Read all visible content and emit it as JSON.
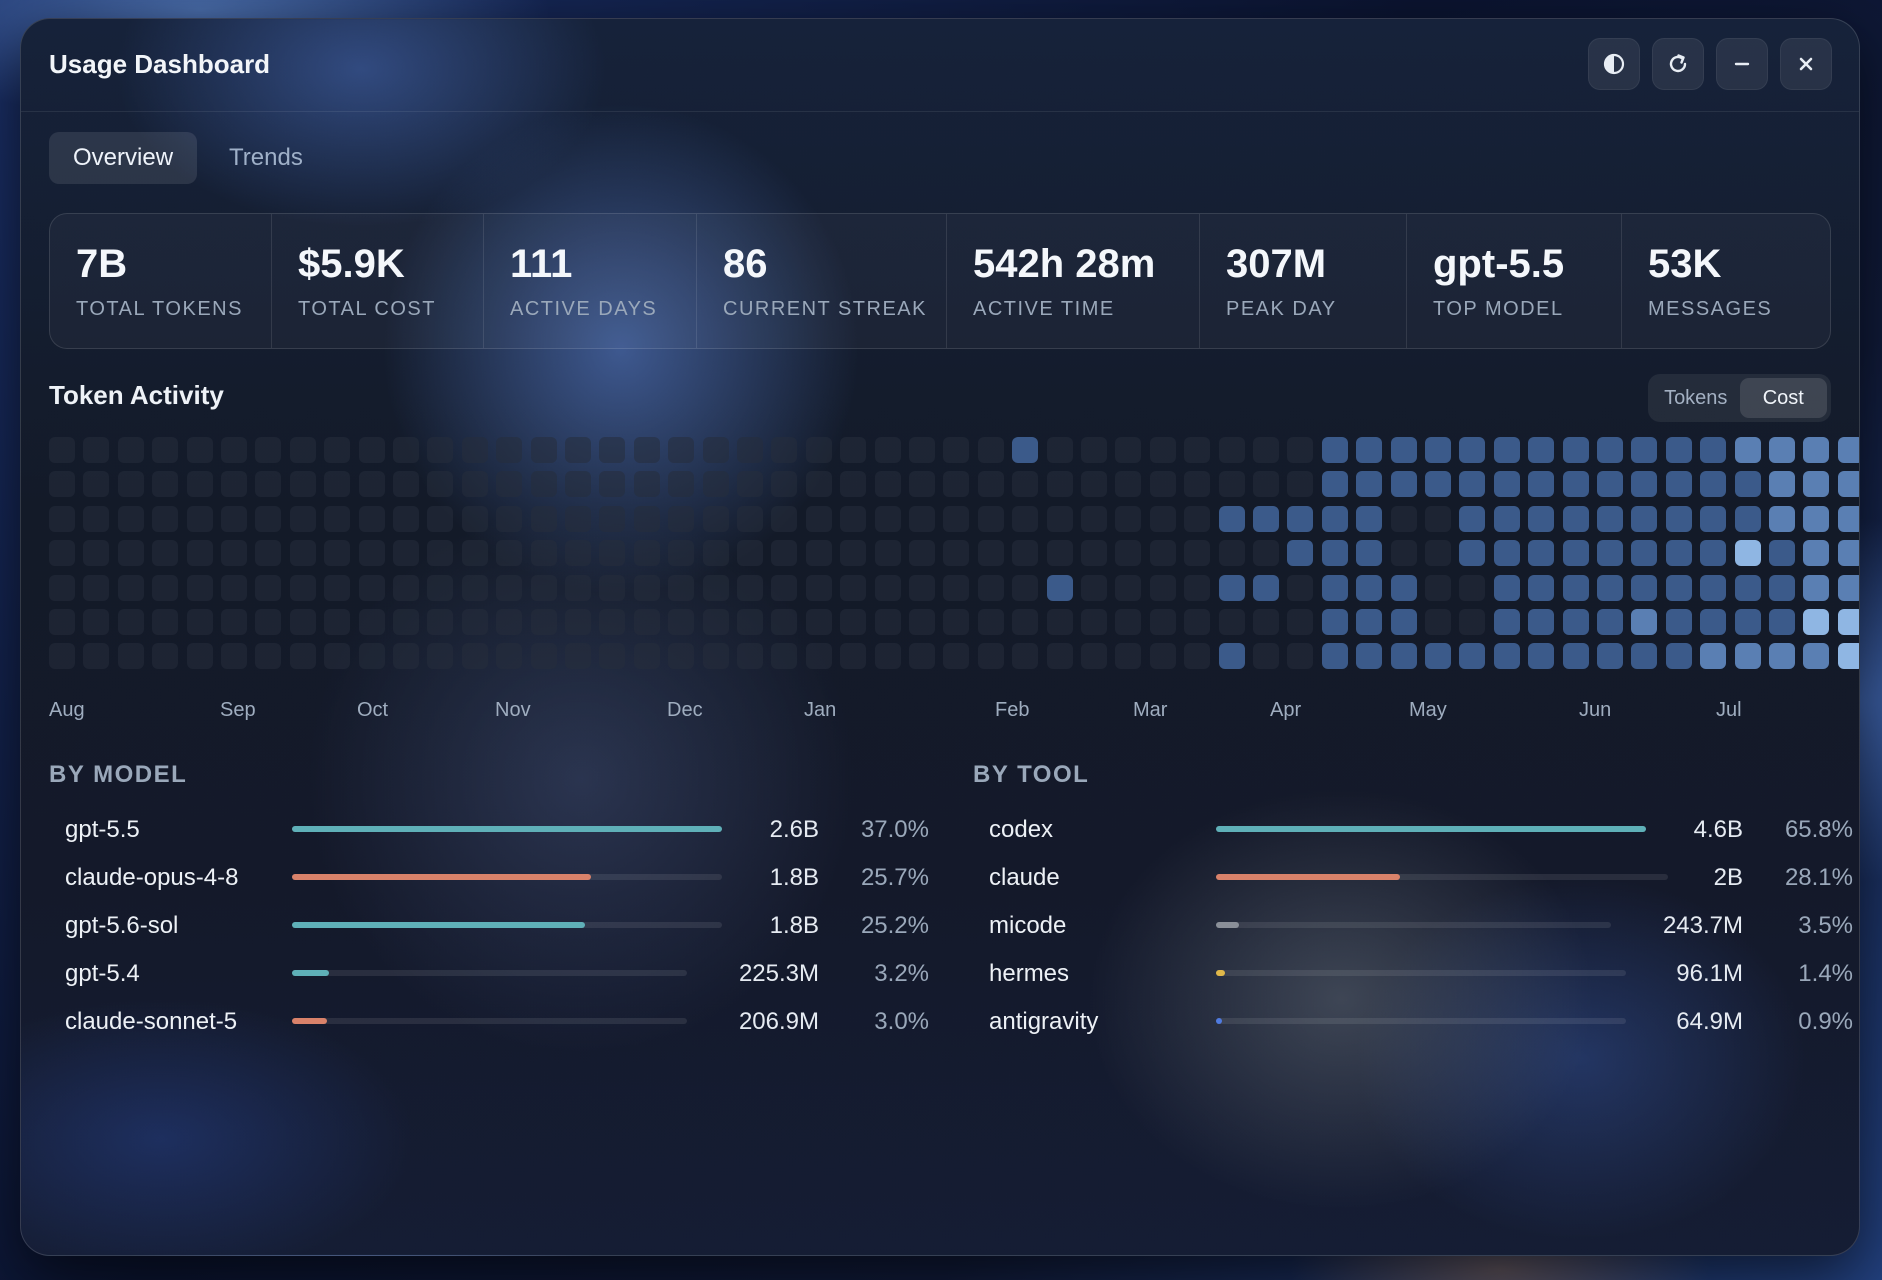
{
  "window": {
    "title": "Usage Dashboard",
    "controls": [
      {
        "name": "theme-toggle-button",
        "icon": "contrast-icon"
      },
      {
        "name": "refresh-button",
        "icon": "refresh-icon"
      },
      {
        "name": "minimize-button",
        "icon": "minimize-icon"
      },
      {
        "name": "close-button",
        "icon": "close-icon"
      }
    ]
  },
  "tabs": [
    {
      "label": "Overview",
      "active": true
    },
    {
      "label": "Trends",
      "active": false
    }
  ],
  "stats": [
    {
      "value": "7B",
      "label": "TOTAL TOKENS"
    },
    {
      "value": "$5.9K",
      "label": "TOTAL COST"
    },
    {
      "value": "111",
      "label": "ACTIVE DAYS"
    },
    {
      "value": "86",
      "label": "CURRENT STREAK"
    },
    {
      "value": "542h 28m",
      "label": "ACTIVE TIME"
    },
    {
      "value": "307M",
      "label": "PEAK DAY"
    },
    {
      "value": "gpt-5.5",
      "label": "TOP MODEL"
    },
    {
      "value": "53K",
      "label": "MESSAGES"
    }
  ],
  "activity": {
    "title": "Token Activity",
    "toggle": [
      {
        "label": "Tokens",
        "active": false
      },
      {
        "label": "Cost",
        "active": true
      }
    ],
    "months": [
      "Aug",
      "Sep",
      "Oct",
      "Nov",
      "Dec",
      "Jan",
      "Feb",
      "Mar",
      "Apr",
      "May",
      "Jun",
      "Jul"
    ],
    "palette": [
      "#262d3c",
      "#2d4670",
      "#3b5a8a",
      "#5a7fb3",
      "#8fb6e3",
      "#c7e7fb"
    ],
    "levels": [
      "0000000000000000000000000000200000000222222222222333344",
      "0000000000000000000000000000000000000222222222222233345",
      "0000000000000000000000000000000000222220022222222233335",
      "0000000000000000000000000000000000002220022222222423335",
      "0000000000000000000000000000020000220222002222222223335",
      "0000000000000000000000000000000000000222002222322224444",
      "0000000000000000000000000000000000200222222222223333444"
    ]
  },
  "by_model": {
    "title": "BY MODEL",
    "color": "#5fb0b8",
    "rows": [
      {
        "name": "gpt-5.5",
        "value": "2.6B",
        "pct": "37.0%",
        "share": 0.37,
        "color": "#5fb0b8"
      },
      {
        "name": "claude-opus-4-8",
        "value": "1.8B",
        "pct": "25.7%",
        "share": 0.257,
        "color": "#d9826a"
      },
      {
        "name": "gpt-5.6-sol",
        "value": "1.8B",
        "pct": "25.2%",
        "share": 0.252,
        "color": "#5fb0b8"
      },
      {
        "name": "gpt-5.4",
        "value": "225.3M",
        "pct": "3.2%",
        "share": 0.032,
        "color": "#5fb0b8"
      },
      {
        "name": "claude-sonnet-5",
        "value": "206.9M",
        "pct": "3.0%",
        "share": 0.03,
        "color": "#d9826a"
      }
    ]
  },
  "by_tool": {
    "title": "BY TOOL",
    "rows": [
      {
        "name": "codex",
        "value": "4.6B",
        "pct": "65.8%",
        "share": 0.658,
        "color": "#5fb0b8"
      },
      {
        "name": "claude",
        "value": "2B",
        "pct": "28.1%",
        "share": 0.281,
        "color": "#d9826a"
      },
      {
        "name": "micode",
        "value": "243.7M",
        "pct": "3.5%",
        "share": 0.035,
        "color": "#8a8f98"
      },
      {
        "name": "hermes",
        "value": "96.1M",
        "pct": "1.4%",
        "share": 0.014,
        "color": "#e0b84a"
      },
      {
        "name": "antigravity",
        "value": "64.9M",
        "pct": "0.9%",
        "share": 0.009,
        "color": "#4f7be0"
      }
    ]
  }
}
